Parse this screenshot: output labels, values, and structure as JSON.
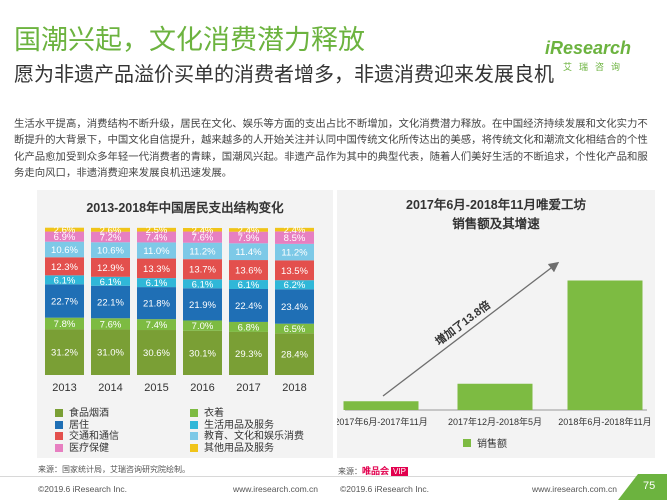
{
  "header": {
    "title": "国潮兴起，文化消费潜力释放",
    "subtitle": "愿为非遗产品溢价买单的消费者增多，非遗消费迎来发展良机",
    "logo_text": "iResearch",
    "logo_cn": "艾瑞咨询"
  },
  "intro": "生活水平提高，消费结构不断升级，居民在文化、娱乐等方面的支出占比不断增加，文化消费潜力释放。在中国经济持续发展和文化实力不断提升的大背景下，中国文化自信提升，越来越多的人开始关注并认同中国传统文化所传达出的美感，将传统文化和潮流文化相结合的个性化产品愈加受到众多年轻一代消费者的青睐，国潮风兴起。非遗产品作为其中的典型代表，随着人们美好生活的不断追求，个性化产品和服务走向风口，非遗消费迎来发展良机迅速发展。",
  "left_chart": {
    "source": "来源：国家统计局，艾瑞咨询研究院绘制。",
    "colors": [
      "#f0c419",
      "#e77fc1",
      "#7dc9e7",
      "#e3504d",
      "#30b7d8",
      "#1f6fb5",
      "#7dbb42",
      "#7a9f35"
    ],
    "legend": [
      {
        "label": "食品烟酒",
        "color": "#7a9f35"
      },
      {
        "label": "衣着",
        "color": "#7dbb42"
      },
      {
        "label": "居住",
        "color": "#1f6fb5"
      },
      {
        "label": "生活用品及服务",
        "color": "#30b7d8"
      },
      {
        "label": "交通和通信",
        "color": "#e3504d"
      },
      {
        "label": "教育、文化和娱乐消费",
        "color": "#7dc9e7"
      },
      {
        "label": "医疗保健",
        "color": "#e77fc1"
      },
      {
        "label": "其他用品及服务",
        "color": "#f0c419"
      }
    ]
  },
  "right_chart": {
    "source_prefix": "来源：",
    "source_brand": "唯品会",
    "source_brand_box": "VIP",
    "annotation": "增加了13.8倍",
    "bar_color": "#7dbb42"
  },
  "footer": {
    "left_copyright": "©2019.6 iResearch Inc.",
    "left_url": "www.iresearch.com.cn",
    "right_copyright": "©2019.6 iResearch Inc.",
    "right_url": "www.iresearch.com.cn",
    "page": "75"
  },
  "chart_data": [
    {
      "type": "bar",
      "stacked": true,
      "title": "2013-2018年中国居民支出结构变化",
      "categories": [
        "2013",
        "2014",
        "2015",
        "2016",
        "2017",
        "2018"
      ],
      "ylim": [
        0,
        100
      ],
      "series": [
        {
          "name": "食品烟酒",
          "values": [
            31.2,
            31.0,
            30.6,
            30.1,
            29.3,
            28.4
          ]
        },
        {
          "name": "衣着",
          "values": [
            7.8,
            7.6,
            7.4,
            7.0,
            6.8,
            6.5
          ]
        },
        {
          "name": "居住",
          "values": [
            22.7,
            22.1,
            21.8,
            21.9,
            22.4,
            23.4
          ]
        },
        {
          "name": "生活用品及服务",
          "values": [
            6.1,
            6.1,
            6.1,
            6.1,
            6.1,
            6.2
          ]
        },
        {
          "name": "交通和通信",
          "values": [
            12.3,
            12.9,
            13.3,
            13.7,
            13.6,
            13.5
          ]
        },
        {
          "name": "教育、文化和娱乐消费",
          "values": [
            10.6,
            10.6,
            11.0,
            11.2,
            11.4,
            11.2
          ]
        },
        {
          "name": "医疗保健",
          "values": [
            6.9,
            7.2,
            7.4,
            7.6,
            7.9,
            8.5
          ]
        },
        {
          "name": "其他用品及服务",
          "values": [
            2.6,
            2.6,
            2.5,
            2.4,
            2.4,
            2.4
          ]
        }
      ]
    },
    {
      "type": "bar",
      "title": "2017年6月-2018年11月唯爱工坊",
      "subtitle": "销售额及其增速",
      "categories": [
        "2017年6月-2017年11月",
        "2017年12月-2018年5月",
        "2018年6月-2018年11月"
      ],
      "series": [
        {
          "name": "销售额",
          "values": [
            1,
            3,
            14.8
          ]
        }
      ],
      "ylim": [
        0,
        16
      ],
      "annotation": "增加了13.8倍"
    }
  ]
}
